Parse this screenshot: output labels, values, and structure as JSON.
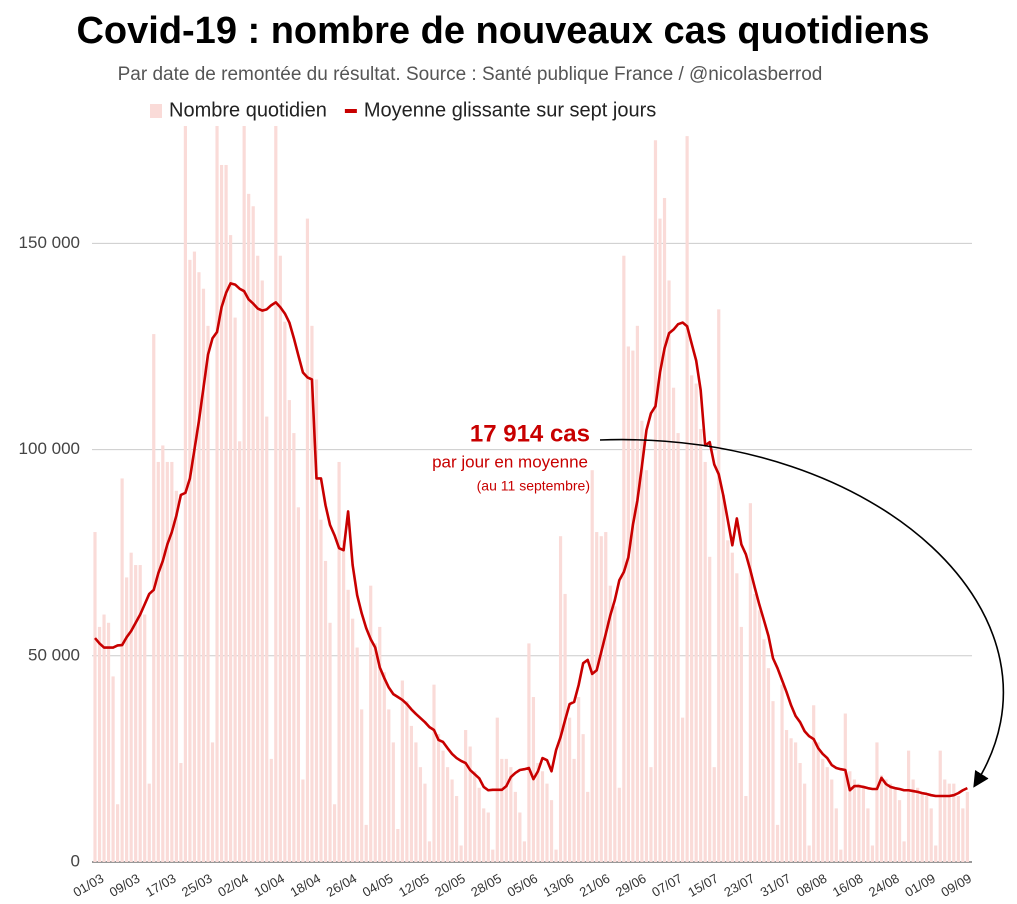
{
  "chart_data": {
    "type": "bar",
    "title": "Covid-19 : nombre de nouveaux cas quotidiens",
    "subtitle": "Par date de remontée du résultat. Source : Santé publique France / @nicolasberrod",
    "categories": [
      "01/03",
      null,
      null,
      null,
      null,
      null,
      null,
      null,
      "09/03",
      null,
      null,
      null,
      null,
      null,
      null,
      null,
      "17/03",
      null,
      null,
      null,
      null,
      null,
      null,
      null,
      "25/03",
      null,
      null,
      null,
      null,
      null,
      null,
      null,
      "02/04",
      null,
      null,
      null,
      null,
      null,
      null,
      null,
      "10/04",
      null,
      null,
      null,
      null,
      null,
      null,
      null,
      "18/04",
      null,
      null,
      null,
      null,
      null,
      null,
      null,
      "26/04",
      null,
      null,
      null,
      null,
      null,
      null,
      null,
      "04/05",
      null,
      null,
      null,
      null,
      null,
      null,
      null,
      "12/05",
      null,
      null,
      null,
      null,
      null,
      null,
      null,
      "20/05",
      null,
      null,
      null,
      null,
      null,
      null,
      null,
      "28/05",
      null,
      null,
      null,
      null,
      null,
      null,
      null,
      "05/06",
      null,
      null,
      null,
      null,
      null,
      null,
      null,
      "13/06",
      null,
      null,
      null,
      null,
      null,
      null,
      null,
      "21/06",
      null,
      null,
      null,
      null,
      null,
      null,
      null,
      "29/06",
      null,
      null,
      null,
      null,
      null,
      null,
      null,
      "07/07",
      null,
      null,
      null,
      null,
      null,
      null,
      null,
      "15/07",
      null,
      null,
      null,
      null,
      null,
      null,
      null,
      "23/07",
      null,
      null,
      null,
      null,
      null,
      null,
      null,
      "31/07",
      null,
      null,
      null,
      null,
      null,
      null,
      null,
      "08/08",
      null,
      null,
      null,
      null,
      null,
      null,
      null,
      "16/08",
      null,
      null,
      null,
      null,
      null,
      null,
      null,
      "24/08",
      null,
      null,
      null,
      null,
      null,
      null,
      null,
      "01/09",
      null,
      null,
      null,
      null,
      null,
      null,
      null,
      "09/09",
      null
    ],
    "series": [
      {
        "name": "Nombre quotidien",
        "type": "bar",
        "color": "#fadbd8",
        "values": [
          80000,
          57000,
          60000,
          58000,
          45000,
          14000,
          93000,
          69000,
          75000,
          72000,
          72000,
          60000,
          19000,
          128000,
          97000,
          101000,
          97000,
          97000,
          90000,
          24000,
          180000,
          146000,
          148000,
          143000,
          139000,
          130000,
          29000,
          180000,
          169000,
          169000,
          152000,
          132000,
          102000,
          185000,
          162000,
          159000,
          147000,
          141000,
          108000,
          25000,
          185000,
          147000,
          131000,
          112000,
          104000,
          86000,
          20000,
          156000,
          130000,
          117000,
          83000,
          73000,
          58000,
          14000,
          97000,
          78000,
          66000,
          59000,
          52000,
          37000,
          9000,
          67000,
          53000,
          57000,
          46000,
          37000,
          29000,
          8000,
          44000,
          39000,
          33000,
          29000,
          23000,
          19000,
          5000,
          43000,
          31000,
          27000,
          23000,
          20000,
          16000,
          4000,
          32000,
          28000,
          22000,
          18000,
          13000,
          12000,
          3000,
          35000,
          25000,
          25000,
          23000,
          17000,
          12000,
          5000,
          53000,
          40000,
          24000,
          22000,
          19000,
          15000,
          3000,
          79000,
          65000,
          35000,
          25000,
          40000,
          31000,
          17000,
          95000,
          80000,
          79000,
          80000,
          67000,
          62000,
          18000,
          147000,
          125000,
          124000,
          130000,
          107000,
          95000,
          23000,
          175000,
          156000,
          161000,
          141000,
          115000,
          104000,
          35000,
          176000,
          118000,
          116000,
          105000,
          97000,
          74000,
          23000,
          134000,
          89000,
          78000,
          75000,
          70000,
          57000,
          16000,
          87000,
          65000,
          61000,
          54000,
          47000,
          39000,
          9000,
          43000,
          32000,
          30000,
          29000,
          24000,
          19000,
          4000,
          38000,
          29000,
          25000,
          23000,
          20000,
          13000,
          3000,
          36000,
          22000,
          20000,
          19000,
          18000,
          13000,
          4000,
          29000,
          21000,
          20000,
          19000,
          18000,
          15000,
          5000,
          27000,
          20000,
          18000,
          17000,
          16000,
          13000,
          4000,
          27000,
          20000,
          19000,
          19000,
          16000,
          13000,
          17000
        ]
      },
      {
        "name": "Moyenne glissante sur sept jours",
        "type": "line",
        "color": "#c80000",
        "values": [
          54300,
          53000,
          52000,
          52000,
          52000,
          52500,
          52600,
          54500,
          56000,
          58000,
          60000,
          62500,
          65000,
          66000,
          70000,
          73000,
          77000,
          80000,
          84000,
          89000,
          89500,
          93000,
          100000,
          107000,
          115000,
          123000,
          127000,
          128500,
          134500,
          138000,
          140300,
          140000,
          139000,
          138400,
          136400,
          135400,
          134200,
          133700,
          134000,
          135000,
          135700,
          134500,
          133000,
          130800,
          127000,
          122800,
          118700,
          117500,
          117000,
          93000,
          93000,
          86500,
          81700,
          79200,
          76100,
          75600,
          85000,
          72000,
          64700,
          60300,
          56700,
          54000,
          52000,
          47200,
          44600,
          42300,
          40700,
          40000,
          39300,
          38300,
          37000,
          35900,
          34900,
          33900,
          32700,
          32000,
          29600,
          29100,
          27600,
          26200,
          25200,
          24500,
          24000,
          22300,
          21300,
          20300,
          18200,
          17400,
          17500,
          17500,
          17500,
          18400,
          20600,
          21600,
          22300,
          22500,
          22800,
          20100,
          22000,
          25200,
          24700,
          22000,
          27100,
          30300,
          34400,
          38300,
          38800,
          42900,
          48200,
          49000,
          45600,
          46500,
          50900,
          55300,
          59800,
          63500,
          68300,
          70300,
          73900,
          81700,
          87700,
          96000,
          104700,
          108800,
          110500,
          118700,
          124500,
          128200,
          129100,
          130400,
          130800,
          129900,
          125700,
          121600,
          114400,
          101000,
          101800,
          96400,
          94000,
          88900,
          82900,
          76800,
          83300,
          77000,
          74600,
          70700,
          66400,
          62300,
          58600,
          54800,
          49400,
          47000,
          44100,
          41200,
          38000,
          35400,
          33900,
          31700,
          30500,
          29800,
          27600,
          26200,
          25200,
          23500,
          22800,
          22500,
          22300,
          17400,
          18400,
          18400,
          18200,
          17900,
          17700,
          17700,
          20400,
          18900,
          18200,
          17900,
          17700,
          17400,
          17400,
          17200,
          17000,
          16700,
          16500,
          16200,
          16000,
          16000,
          16000,
          16000,
          16200,
          16700,
          17400,
          17914
        ]
      }
    ],
    "ylim": [
      0,
      185000
    ],
    "yticks": [
      0,
      {
        "value": 50000,
        "label": "50 000"
      },
      {
        "value": 100000,
        "label": "100 000"
      },
      {
        "value": 150000,
        "label": "150 000"
      }
    ],
    "grid": true,
    "annotations": [
      "17 914 cas",
      "par jour en moyenne",
      "(au 11 septembre)"
    ]
  }
}
